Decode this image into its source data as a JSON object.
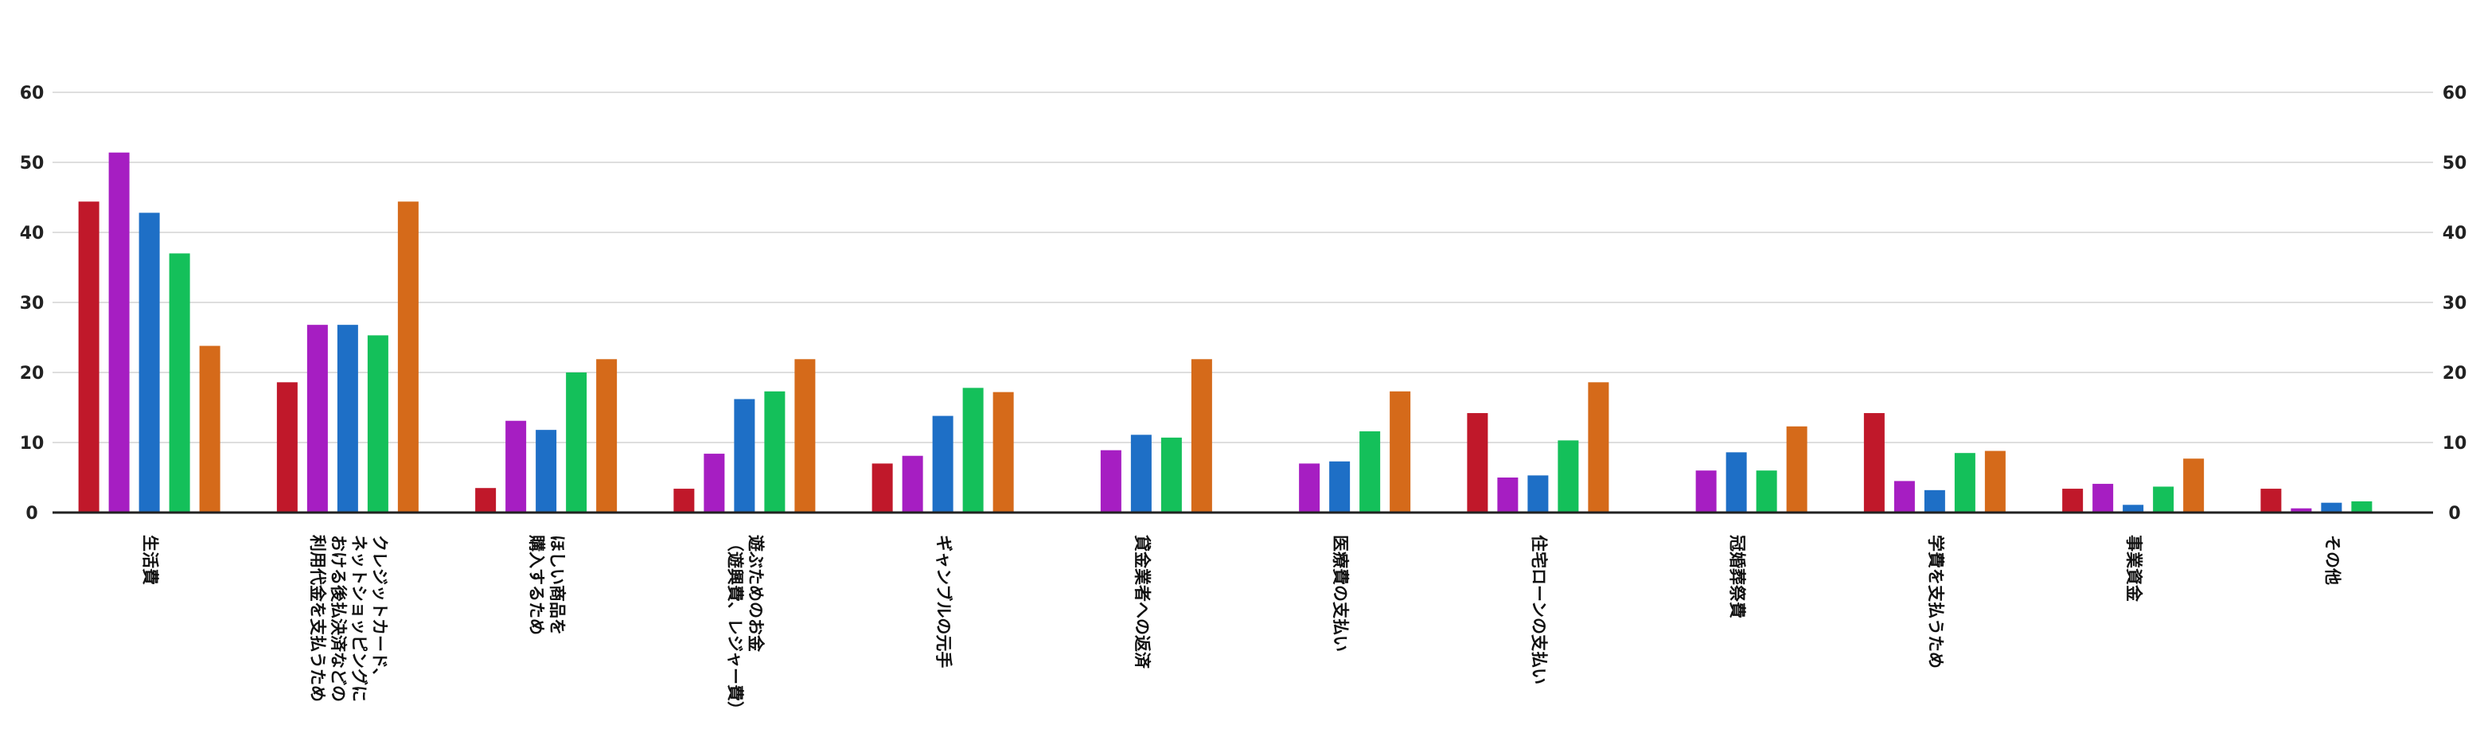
{
  "chart_data": {
    "type": "bar",
    "categories": [
      [
        "生活費"
      ],
      [
        "クレジットカード、",
        "ネットショッピングに",
        "おける後払決済などの",
        "利用代金を支払うため"
      ],
      [
        "ほしい商品を",
        "購入するため"
      ],
      [
        "遊ぶためのお金",
        "（遊興費、レジャー費）"
      ],
      [
        "ギャンブルの元手"
      ],
      [
        "貸金業者への返済"
      ],
      [
        "医療費の支払い"
      ],
      [
        "住宅ローンの支払い"
      ],
      [
        "冠婚葬祭費"
      ],
      [
        "学費を支払うため"
      ],
      [
        "事業資金"
      ],
      [
        "その他"
      ]
    ],
    "series": [
      {
        "color": "#c0182a",
        "values": [
          44.4,
          18.6,
          3.5,
          3.4,
          7.0,
          null,
          null,
          14.2,
          null,
          14.2,
          3.4,
          3.4
        ]
      },
      {
        "color": "#a61ec2",
        "values": [
          51.4,
          26.8,
          13.1,
          8.4,
          8.1,
          8.9,
          7.0,
          5.0,
          6.0,
          4.5,
          4.1,
          0.6
        ]
      },
      {
        "color": "#1e6fc6",
        "values": [
          42.8,
          26.8,
          11.8,
          16.2,
          13.8,
          11.1,
          7.3,
          5.3,
          8.6,
          3.2,
          1.1,
          1.4
        ]
      },
      {
        "color": "#14c05a",
        "values": [
          37.0,
          25.3,
          20.0,
          17.3,
          17.8,
          10.7,
          11.6,
          10.3,
          6.0,
          8.5,
          3.7,
          1.6
        ]
      },
      {
        "color": "#d56a1a",
        "values": [
          23.8,
          44.4,
          21.9,
          21.9,
          17.2,
          21.9,
          17.3,
          18.6,
          12.3,
          8.8,
          7.7,
          null
        ]
      }
    ],
    "ylim": [
      0,
      60
    ],
    "yticks": [
      0,
      10,
      20,
      30,
      40,
      50,
      60
    ],
    "grid": true,
    "axes": "left-and-right"
  }
}
